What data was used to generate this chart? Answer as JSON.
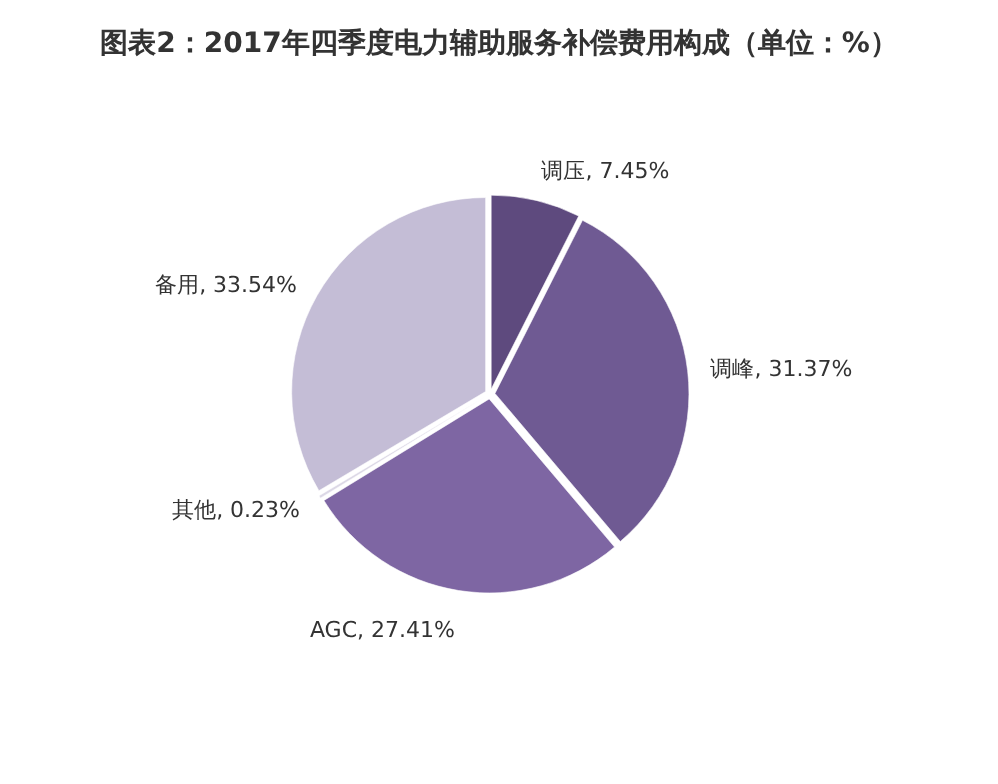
{
  "chart_data": {
    "type": "pie",
    "title": "图表2：2017年四季度电力辅助服务补偿费用构成（单位：%）",
    "categories": [
      "调压",
      "调峰",
      "AGC",
      "其他",
      "备用"
    ],
    "values": [
      7.45,
      31.37,
      27.41,
      0.23,
      33.54
    ],
    "colors": [
      "#5e4a7e",
      "#6f5a93",
      "#7e66a3",
      "#dcd8e6",
      "#c4bdd6"
    ],
    "value_labels": [
      ", 7.45%",
      ", 31.37%",
      ", 27.41%",
      ", 0.23%",
      ", 33.54%"
    ],
    "legend": false
  }
}
